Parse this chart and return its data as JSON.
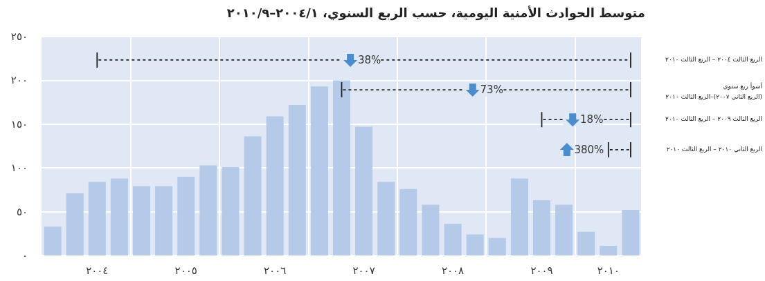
{
  "chart_data": {
    "type": "bar",
    "title": "متوسط الحوادث الأمنية اليومية، حسب الربع السنوي، ٢٠٠٤/١–٢٠١٠/٩",
    "categories": [
      null,
      null,
      "٢٠٠٤",
      null,
      null,
      null,
      "٢٠٠٥",
      null,
      null,
      null,
      "٢٠٠٦",
      null,
      null,
      null,
      "٢٠٠٧",
      null,
      null,
      null,
      "٢٠٠٨",
      null,
      null,
      null,
      "٢٠٠٩",
      null,
      null,
      "٢٠١٠",
      null
    ],
    "values": [
      33,
      71,
      84,
      88,
      79,
      79,
      90,
      103,
      101,
      136,
      159,
      172,
      193,
      200,
      147,
      84,
      76,
      58,
      36,
      24,
      20,
      88,
      63,
      58,
      27,
      11,
      52
    ],
    "color": "#b5c9e8",
    "ylim": [
      0,
      250
    ],
    "yticks": [
      {
        "value": 0,
        "label": "٠"
      },
      {
        "value": 50,
        "label": "٥٠"
      },
      {
        "value": 100,
        "label": "١٠٠"
      },
      {
        "value": 150,
        "label": "١٥٠"
      },
      {
        "value": 200,
        "label": "٢٠٠"
      },
      {
        "value": 250,
        "label": "٢٥٠"
      }
    ],
    "grid": true,
    "annotations": [
      "38%",
      "73%",
      "18%",
      "380%",
      "الربع الثالث ٢٠٠٤ – الربع الثالث ٢٠١٠",
      "أسوأ ربع سنوي\n(الربع الثاني ٢٠٠٧)–الربع الثالث ٢٠١٠",
      "الربع الثالث ٢٠٠٩ – الربع الثالث ٢٠١٠",
      "الربع الثاني ٢٠١٠ – الربع الثالث ٢٠١٠"
    ]
  }
}
